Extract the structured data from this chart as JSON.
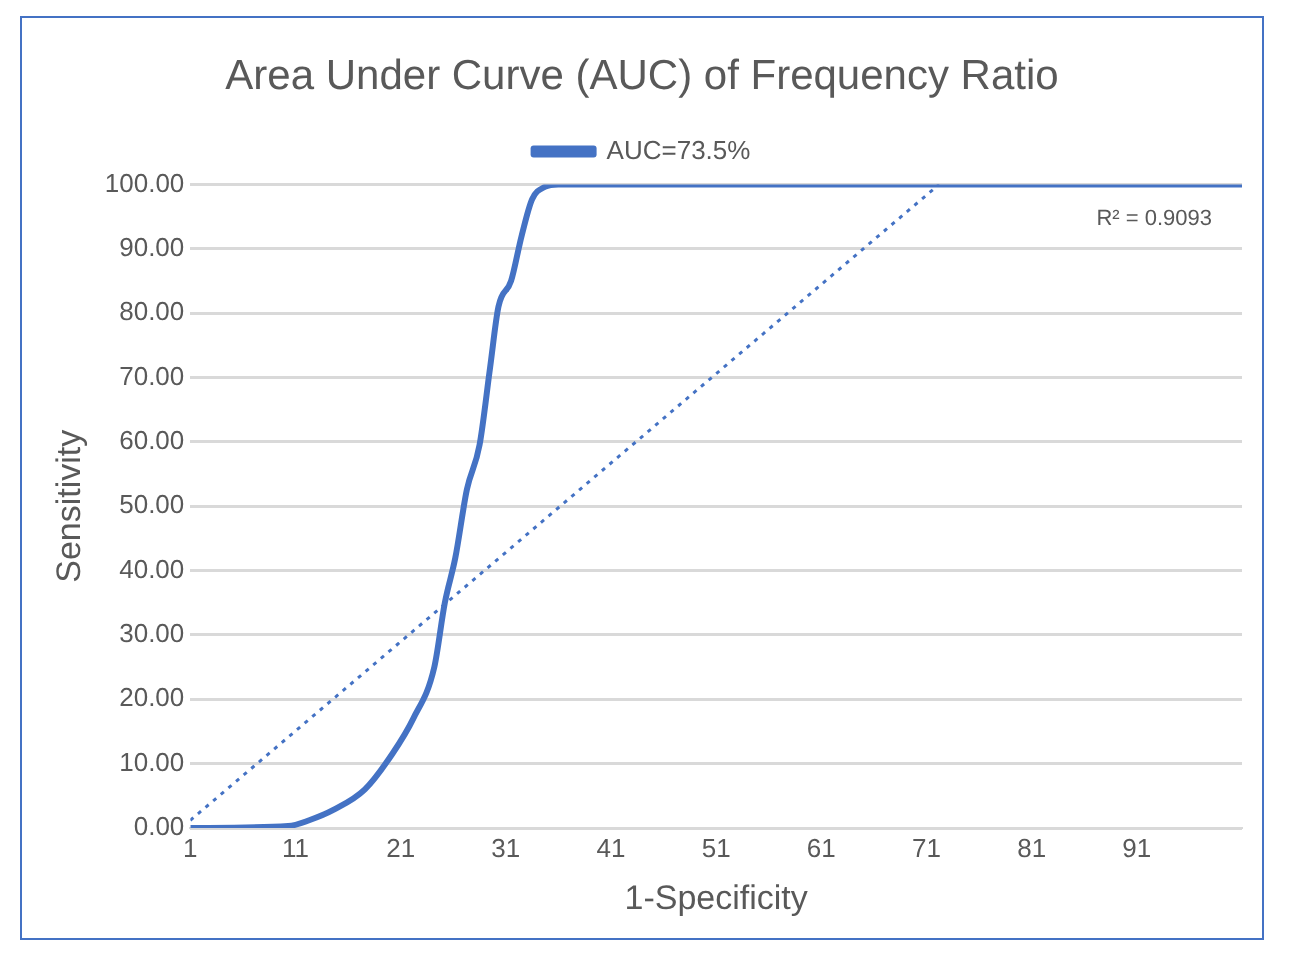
{
  "chart_data": {
    "type": "line",
    "title": "Area Under Curve (AUC) of Frequency Ratio",
    "xlabel": "1-Specificity",
    "ylabel": "Sensitivity",
    "xlim": [
      1,
      101
    ],
    "xticks": [
      1,
      11,
      21,
      31,
      41,
      51,
      61,
      71,
      81,
      91
    ],
    "ylim": [
      0,
      100
    ],
    "yticks": [
      {
        "value": 0,
        "label": "0.00"
      },
      {
        "value": 10,
        "label": "10.00"
      },
      {
        "value": 20,
        "label": "20.00"
      },
      {
        "value": 30,
        "label": "30.00"
      },
      {
        "value": 40,
        "label": "40.00"
      },
      {
        "value": 50,
        "label": "50.00"
      },
      {
        "value": 60,
        "label": "60.00"
      },
      {
        "value": 70,
        "label": "70.00"
      },
      {
        "value": 80,
        "label": "80.00"
      },
      {
        "value": 90,
        "label": "90.00"
      },
      {
        "value": 100,
        "label": "100.00"
      }
    ],
    "grid": "y",
    "legend": "top",
    "marker": "none",
    "series": [
      {
        "name": "AUC=73.5%",
        "color": "#4472c4",
        "line_style": "solid",
        "x": [
          1,
          10.3,
          12.3,
          14.6,
          17.6,
          20.2,
          22.2,
          24.2,
          25.2,
          26.2,
          27.3,
          28.5,
          29.5,
          30.3,
          31.5,
          32.5,
          33.5,
          34.7,
          36,
          101
        ],
        "values": [
          0,
          0.3,
          1.2,
          2.8,
          6,
          11.5,
          17,
          25,
          35,
          42,
          52.6,
          59.5,
          71.5,
          81,
          85,
          92,
          97.7,
          99.6,
          100,
          100
        ]
      },
      {
        "type": "line",
        "color": "#4472c4",
        "line_style": "dotted",
        "x": [
          1,
          72.2
        ],
        "values": [
          1.2,
          100
        ]
      }
    ],
    "annotations": [
      "R² = 0.9093"
    ]
  }
}
